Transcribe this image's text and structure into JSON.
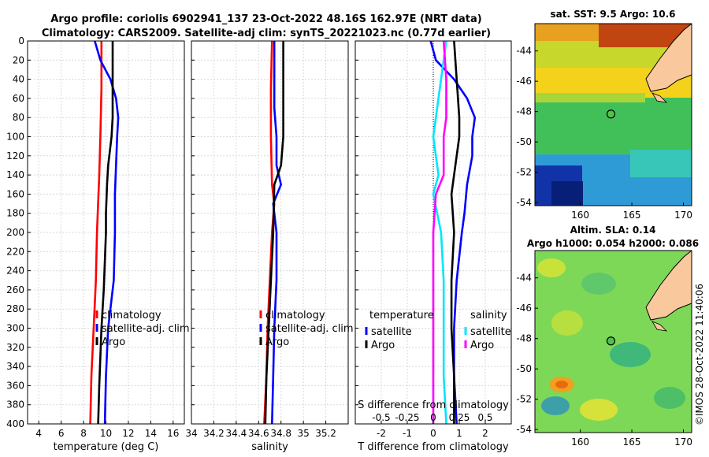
{
  "header": {
    "line1": "Argo profile: coriolis 6902941_137 23-Oct-2022 48.16S 162.97E (NRT data)",
    "line2": "Climatology: CARS2009. Satellite-adj clim: synTS_20221023.nc (0.77d earlier)"
  },
  "watermark": "©IMOS 28-Oct-2022 11:40:06",
  "colors": {
    "climatology": "#ff0000",
    "satellite": "#0000ff",
    "argo": "#000000",
    "salinity": "#00e5ff",
    "salinity_sat": "#ff00ff",
    "land": "#f9c89c"
  },
  "chart_data": [
    {
      "id": "temperature",
      "type": "line",
      "xlabel": "temperature (deg C)",
      "xlim": [
        3,
        17
      ],
      "xticks": [
        4,
        6,
        8,
        10,
        12,
        14,
        16
      ],
      "ylim": [
        0,
        400
      ],
      "yticks": [
        0,
        20,
        40,
        60,
        80,
        100,
        120,
        140,
        160,
        180,
        200,
        220,
        240,
        260,
        280,
        300,
        320,
        340,
        360,
        380,
        400
      ],
      "legend": [
        "climatology",
        "satellite-adj. clim",
        "Argo"
      ],
      "series": [
        {
          "name": "climatology",
          "color": "#ff0000",
          "depth": [
            0,
            20,
            50,
            100,
            140,
            200,
            250,
            300,
            350,
            400
          ],
          "values": [
            9.6,
            9.6,
            9.6,
            9.5,
            9.4,
            9.2,
            9.1,
            8.9,
            8.7,
            8.6
          ]
        },
        {
          "name": "satellite-adj. clim",
          "color": "#0000ff",
          "depth": [
            0,
            20,
            40,
            60,
            80,
            100,
            130,
            160,
            200,
            250,
            300,
            350,
            400
          ],
          "values": [
            9.0,
            9.5,
            10.4,
            10.9,
            11.1,
            11.0,
            10.9,
            10.8,
            10.8,
            10.7,
            10.2,
            10.0,
            9.9
          ]
        },
        {
          "name": "Argo",
          "color": "#000000",
          "depth": [
            0,
            40,
            80,
            100,
            130,
            150,
            180,
            200,
            230,
            260,
            300,
            330,
            360,
            400
          ],
          "values": [
            10.6,
            10.6,
            10.6,
            10.5,
            10.2,
            10.1,
            10.0,
            10.0,
            9.9,
            9.8,
            9.6,
            9.5,
            9.4,
            9.3
          ]
        }
      ]
    },
    {
      "id": "salinity",
      "type": "line",
      "xlabel": "salinity",
      "xlim": [
        34,
        35.4
      ],
      "xticks": [
        34,
        34.2,
        34.4,
        34.6,
        34.8,
        35,
        35.2
      ],
      "ylim": [
        0,
        400
      ],
      "legend": [
        "climatology",
        "satellite-adj. clim",
        "Argo"
      ],
      "series": [
        {
          "name": "climatology",
          "color": "#ff0000",
          "depth": [
            0,
            50,
            100,
            150,
            170,
            200,
            250,
            300,
            350,
            400
          ],
          "values": [
            34.72,
            34.71,
            34.71,
            34.72,
            34.74,
            34.72,
            34.7,
            34.68,
            34.67,
            34.65
          ]
        },
        {
          "name": "satellite-adj. clim",
          "color": "#0000ff",
          "depth": [
            0,
            40,
            70,
            100,
            130,
            150,
            170,
            200,
            250,
            300,
            350,
            400
          ],
          "values": [
            34.74,
            34.74,
            34.74,
            34.76,
            34.76,
            34.8,
            34.73,
            34.76,
            34.76,
            34.74,
            34.73,
            34.72
          ]
        },
        {
          "name": "Argo",
          "color": "#000000",
          "depth": [
            0,
            50,
            100,
            130,
            150,
            200,
            250,
            300,
            350,
            400
          ],
          "values": [
            34.82,
            34.82,
            34.82,
            34.8,
            34.74,
            34.73,
            34.71,
            34.69,
            34.67,
            34.66
          ]
        }
      ]
    },
    {
      "id": "difference",
      "type": "line",
      "xlabel": "T difference from climatology",
      "xlim": [
        -3,
        3
      ],
      "xticks": [
        -2,
        -1,
        0,
        1,
        2
      ],
      "top_label": "S difference from climatology",
      "top_ticks": [
        "-0.5",
        "-0.25",
        "0",
        "0.25",
        "0.5"
      ],
      "top_tick_values": [
        -2,
        -1,
        0,
        1,
        2
      ],
      "ylim": [
        0,
        400
      ],
      "legend_left": {
        "title": "temperature",
        "items": [
          "satellite",
          "Argo"
        ]
      },
      "legend_right": {
        "title": "salinity",
        "items": [
          "satellite",
          "Argo"
        ]
      },
      "series": [
        {
          "name": "temperature satellite",
          "color": "#0000ff",
          "depth": [
            0,
            20,
            40,
            60,
            80,
            100,
            120,
            150,
            180,
            200,
            250,
            300,
            350,
            400
          ],
          "values": [
            -0.1,
            0.1,
            0.8,
            1.3,
            1.6,
            1.5,
            1.5,
            1.3,
            1.2,
            1.1,
            0.9,
            0.8,
            0.8,
            0.9
          ]
        },
        {
          "name": "temperature Argo",
          "color": "#000000",
          "depth": [
            0,
            40,
            80,
            100,
            140,
            160,
            200,
            250,
            300,
            350,
            400
          ],
          "values": [
            0.8,
            0.9,
            1.0,
            1.0,
            0.8,
            0.7,
            0.8,
            0.7,
            0.7,
            0.8,
            0.8
          ]
        },
        {
          "name": "salinity satellite",
          "color": "#00e5ff",
          "depth": [
            0,
            40,
            80,
            100,
            140,
            160,
            200,
            250,
            300,
            350,
            400
          ],
          "values": [
            0.5,
            0.3,
            0.1,
            0.0,
            0.2,
            0.0,
            0.3,
            0.4,
            0.4,
            0.4,
            0.5
          ]
        },
        {
          "name": "salinity Argo",
          "color": "#ff00ff",
          "depth": [
            0,
            40,
            80,
            100,
            140,
            160,
            200,
            250,
            300,
            350,
            400
          ],
          "values": [
            0.4,
            0.5,
            0.5,
            0.4,
            0.4,
            0.1,
            0.0,
            0.0,
            0.0,
            0.0,
            0.0
          ]
        }
      ]
    },
    {
      "id": "sst-map",
      "type": "heatmap",
      "title": "sat. SST: 9.5 Argo: 10.6",
      "xticks": [
        160,
        165,
        170
      ],
      "yticks": [
        -44,
        -46,
        -48,
        -50,
        -52,
        -54
      ],
      "xlim": [
        155.6,
        170.8
      ],
      "ylim": [
        -54.2,
        -42.2
      ],
      "marker": {
        "lon": 162.97,
        "lat": -48.16
      }
    },
    {
      "id": "sla-map",
      "type": "heatmap",
      "title1": "Altim. SLA: 0.14",
      "title2": "Argo h1000: 0.054 h2000: 0.086",
      "xticks": [
        160,
        165,
        170
      ],
      "yticks": [
        -44,
        -46,
        -48,
        -50,
        -52,
        -54
      ],
      "xlim": [
        155.6,
        170.8
      ],
      "ylim": [
        -54.2,
        -42.2
      ],
      "marker": {
        "lon": 162.97,
        "lat": -48.16
      }
    }
  ]
}
